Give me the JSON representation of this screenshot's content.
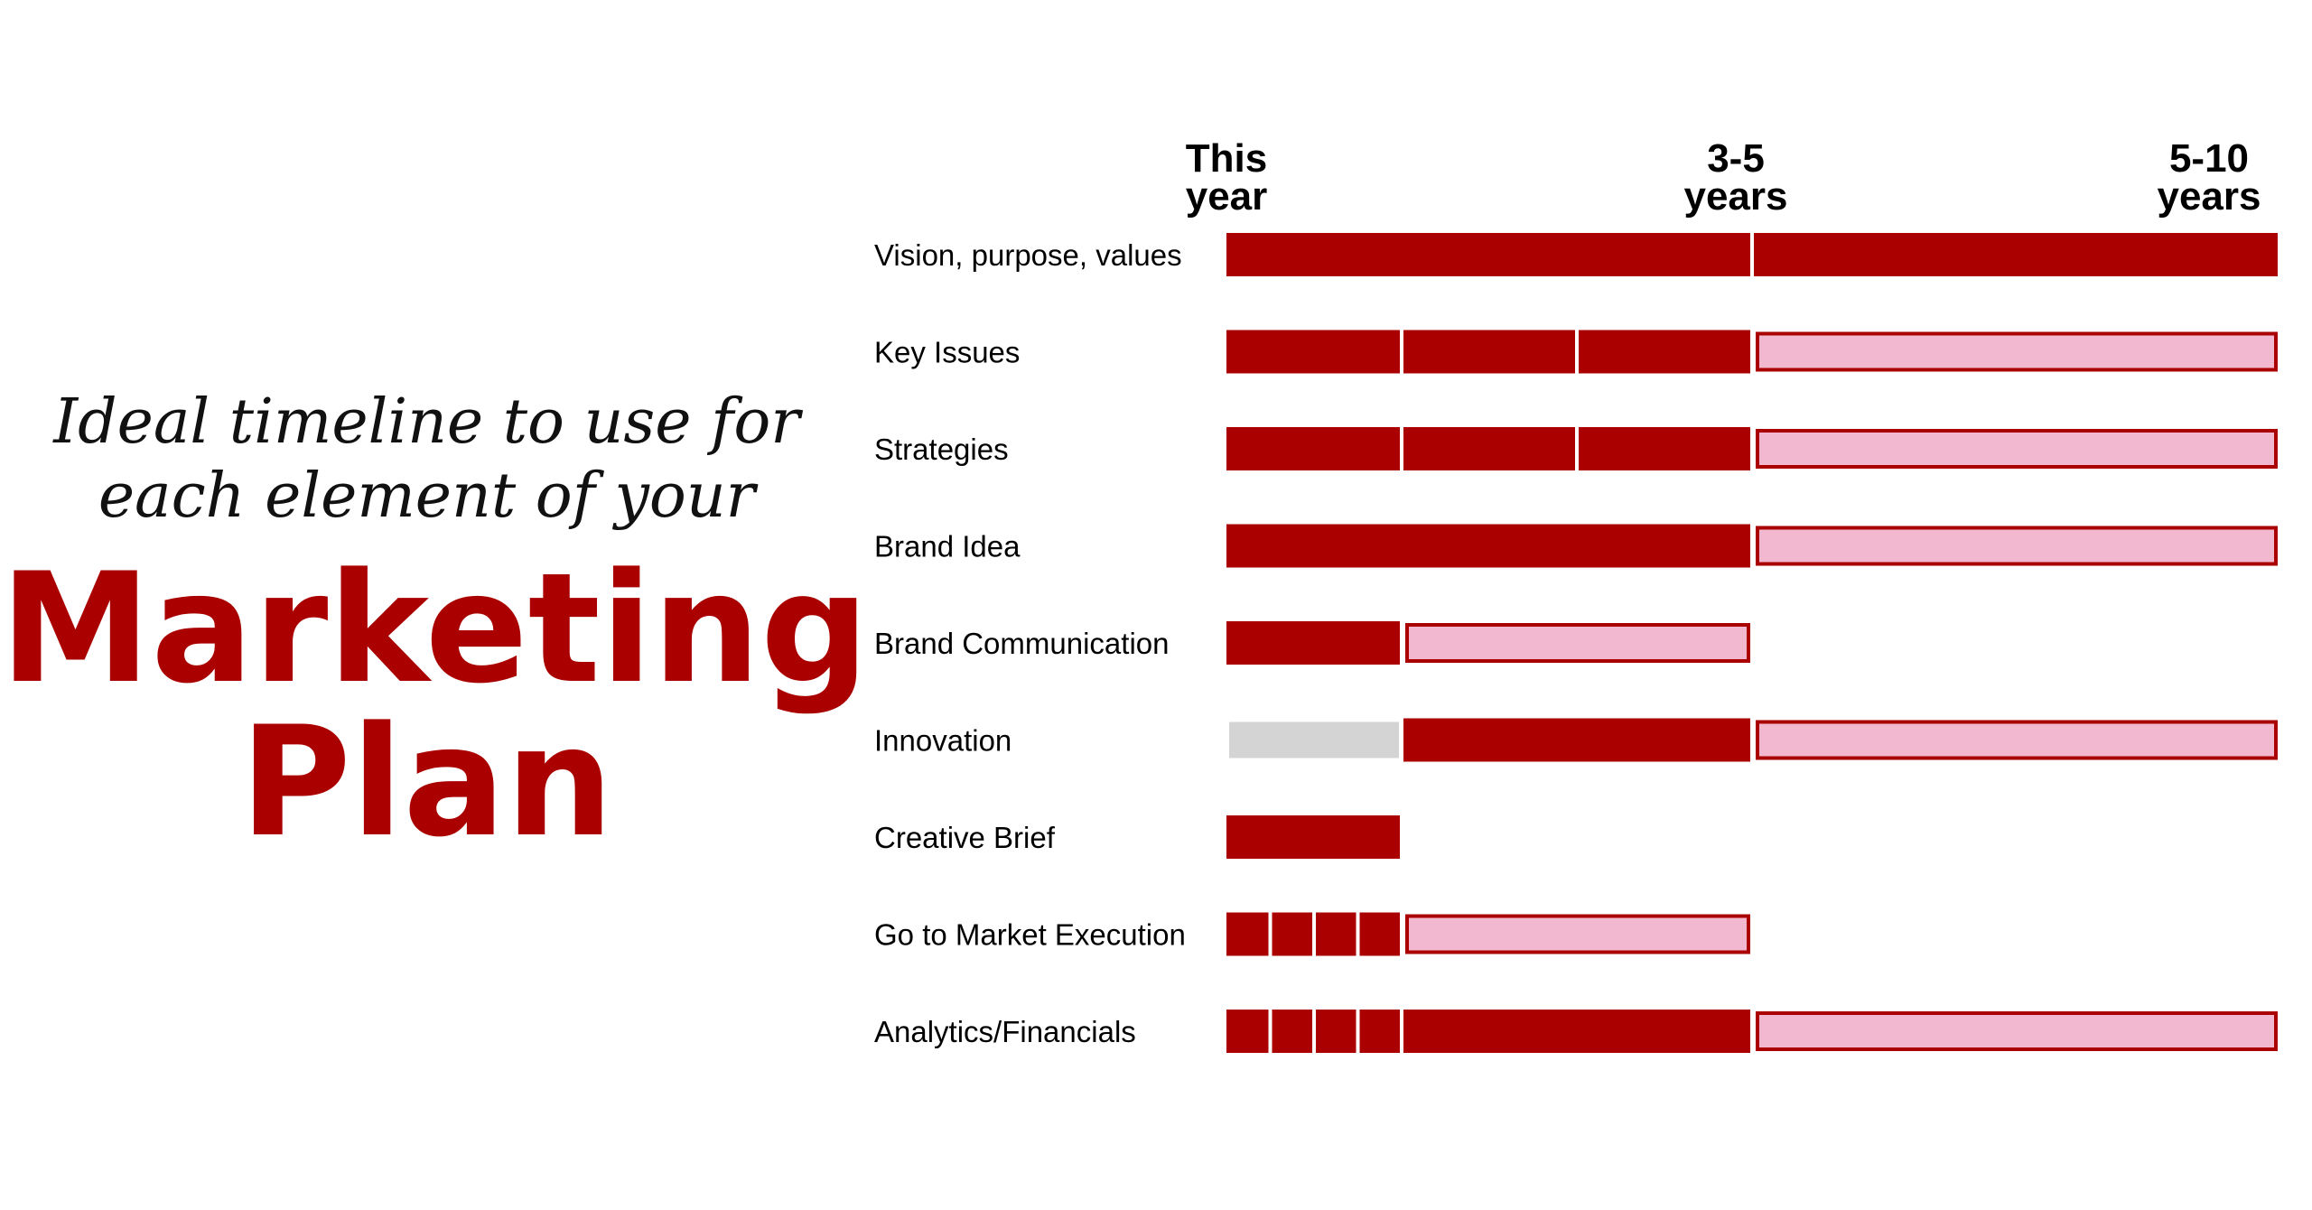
{
  "heading": {
    "line1": "Ideal timeline to use for",
    "line2": "each element of your",
    "line3": "Marketing",
    "line4": "Plan"
  },
  "colors": {
    "solid": "#aa0000",
    "outline": "#aa0000",
    "light": "#f2b8cf",
    "inactive": "#d4d4d4"
  },
  "timeline": {
    "columns": [
      {
        "line1": "This",
        "line2": "year"
      },
      {
        "line1": "3-5",
        "line2": "years"
      },
      {
        "line1": "5-10",
        "line2": "years"
      }
    ],
    "rows": [
      {
        "label": "Vision, purpose, values",
        "segments": [
          {
            "from": 0,
            "to": 3,
            "style": "solid"
          },
          {
            "from": 3,
            "to": 6,
            "style": "solid"
          }
        ]
      },
      {
        "label": "Key Issues",
        "segments": [
          {
            "from": 0,
            "to": 1,
            "style": "solid"
          },
          {
            "from": 1,
            "to": 2,
            "style": "solid"
          },
          {
            "from": 2,
            "to": 3,
            "style": "solid"
          },
          {
            "from": 3,
            "to": 6,
            "style": "light"
          }
        ]
      },
      {
        "label": "Strategies",
        "segments": [
          {
            "from": 0,
            "to": 1,
            "style": "solid"
          },
          {
            "from": 1,
            "to": 2,
            "style": "solid"
          },
          {
            "from": 2,
            "to": 3,
            "style": "solid"
          },
          {
            "from": 3,
            "to": 6,
            "style": "light"
          }
        ]
      },
      {
        "label": "Brand Idea",
        "segments": [
          {
            "from": 0,
            "to": 3,
            "style": "solid"
          },
          {
            "from": 3,
            "to": 6,
            "style": "light"
          }
        ]
      },
      {
        "label": "Brand Communication",
        "segments": [
          {
            "from": 0,
            "to": 1,
            "style": "solid"
          },
          {
            "from": 1,
            "to": 3,
            "style": "light"
          }
        ]
      },
      {
        "label": "Innovation",
        "segments": [
          {
            "from": 0,
            "to": 1,
            "style": "inactive"
          },
          {
            "from": 1,
            "to": 3,
            "style": "solid"
          },
          {
            "from": 3,
            "to": 6,
            "style": "light"
          }
        ]
      },
      {
        "label": "Creative Brief",
        "segments": [
          {
            "from": 0,
            "to": 1,
            "style": "solid"
          }
        ]
      },
      {
        "label": "Go to Market Execution",
        "segments": [
          {
            "from": 0,
            "to": 0.25,
            "style": "solid"
          },
          {
            "from": 0.25,
            "to": 0.5,
            "style": "solid"
          },
          {
            "from": 0.5,
            "to": 0.75,
            "style": "solid"
          },
          {
            "from": 0.75,
            "to": 1,
            "style": "solid"
          },
          {
            "from": 1,
            "to": 3,
            "style": "light"
          }
        ]
      },
      {
        "label": "Analytics/Financials",
        "segments": [
          {
            "from": 0,
            "to": 0.25,
            "style": "solid"
          },
          {
            "from": 0.25,
            "to": 0.5,
            "style": "solid"
          },
          {
            "from": 0.5,
            "to": 0.75,
            "style": "solid"
          },
          {
            "from": 0.75,
            "to": 1,
            "style": "solid"
          },
          {
            "from": 1,
            "to": 3,
            "style": "solid"
          },
          {
            "from": 3,
            "to": 6,
            "style": "light"
          }
        ]
      }
    ]
  }
}
